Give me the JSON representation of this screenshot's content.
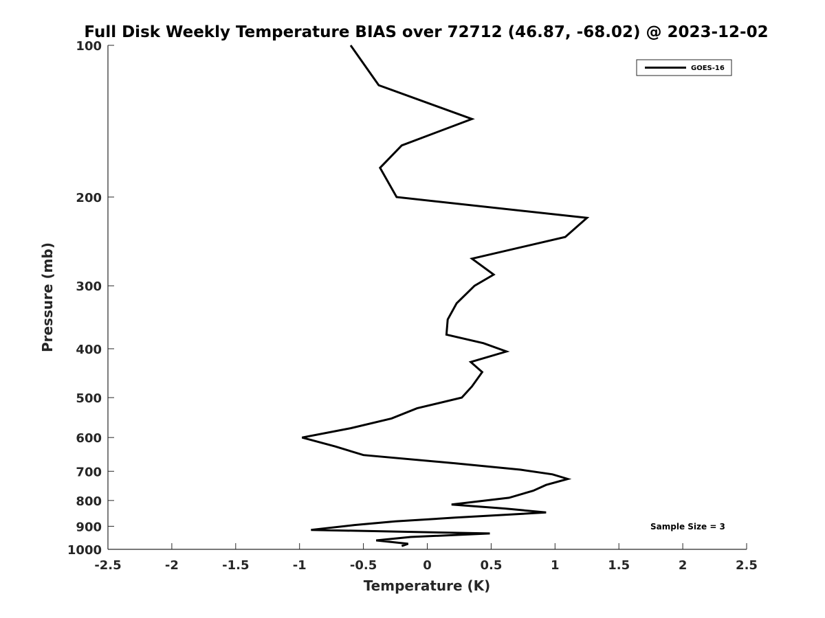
{
  "chart_data": {
    "type": "line",
    "title": "Full Disk Weekly Temperature BIAS over 72712 (46.87, -68.02) @ 2023-12-02",
    "xlabel": "Temperature (K)",
    "ylabel": "Pressure (mb)",
    "xlim": [
      -2.5,
      2.5
    ],
    "ylim": [
      100,
      1000
    ],
    "y_scale": "log",
    "y_reversed": true,
    "x_ticks": [
      "-2.5",
      "-2",
      "-1.5",
      "-1",
      "-0.5",
      "0",
      "0.5",
      "1",
      "1.5",
      "2",
      "2.5"
    ],
    "y_ticks": [
      "100",
      "200",
      "300",
      "400",
      "500",
      "600",
      "700",
      "800",
      "900",
      "1000"
    ],
    "grid": false,
    "legend_position": "top-right",
    "annotation": "Sample Size = 3",
    "series": [
      {
        "name": "GOES-16",
        "color": "#000000",
        "points": [
          {
            "t": -0.6,
            "p": 100
          },
          {
            "t": -0.38,
            "p": 120
          },
          {
            "t": 0.35,
            "p": 140
          },
          {
            "t": -0.2,
            "p": 158
          },
          {
            "t": -0.37,
            "p": 175
          },
          {
            "t": -0.24,
            "p": 200
          },
          {
            "t": 1.25,
            "p": 220
          },
          {
            "t": 1.08,
            "p": 240
          },
          {
            "t": 0.35,
            "p": 265
          },
          {
            "t": 0.52,
            "p": 285
          },
          {
            "t": 0.37,
            "p": 300
          },
          {
            "t": 0.23,
            "p": 325
          },
          {
            "t": 0.16,
            "p": 350
          },
          {
            "t": 0.15,
            "p": 375
          },
          {
            "t": 0.44,
            "p": 390
          },
          {
            "t": 0.62,
            "p": 405
          },
          {
            "t": 0.34,
            "p": 425
          },
          {
            "t": 0.43,
            "p": 445
          },
          {
            "t": 0.35,
            "p": 475
          },
          {
            "t": 0.27,
            "p": 500
          },
          {
            "t": -0.08,
            "p": 525
          },
          {
            "t": -0.28,
            "p": 550
          },
          {
            "t": -0.6,
            "p": 575
          },
          {
            "t": -0.98,
            "p": 600
          },
          {
            "t": -0.72,
            "p": 625
          },
          {
            "t": -0.5,
            "p": 650
          },
          {
            "t": 0.22,
            "p": 675
          },
          {
            "t": 0.73,
            "p": 695
          },
          {
            "t": 0.98,
            "p": 710
          },
          {
            "t": 1.1,
            "p": 725
          },
          {
            "t": 0.93,
            "p": 745
          },
          {
            "t": 0.83,
            "p": 765
          },
          {
            "t": 0.64,
            "p": 790
          },
          {
            "t": 0.19,
            "p": 815
          },
          {
            "t": 0.61,
            "p": 830
          },
          {
            "t": 0.93,
            "p": 845
          },
          {
            "t": 0.22,
            "p": 865
          },
          {
            "t": -0.25,
            "p": 880
          },
          {
            "t": -0.57,
            "p": 895
          },
          {
            "t": -0.91,
            "p": 915
          },
          {
            "t": 0.49,
            "p": 930
          },
          {
            "t": -0.13,
            "p": 945
          },
          {
            "t": -0.4,
            "p": 960
          },
          {
            "t": -0.15,
            "p": 975
          },
          {
            "t": -0.2,
            "p": 985
          }
        ]
      }
    ]
  }
}
